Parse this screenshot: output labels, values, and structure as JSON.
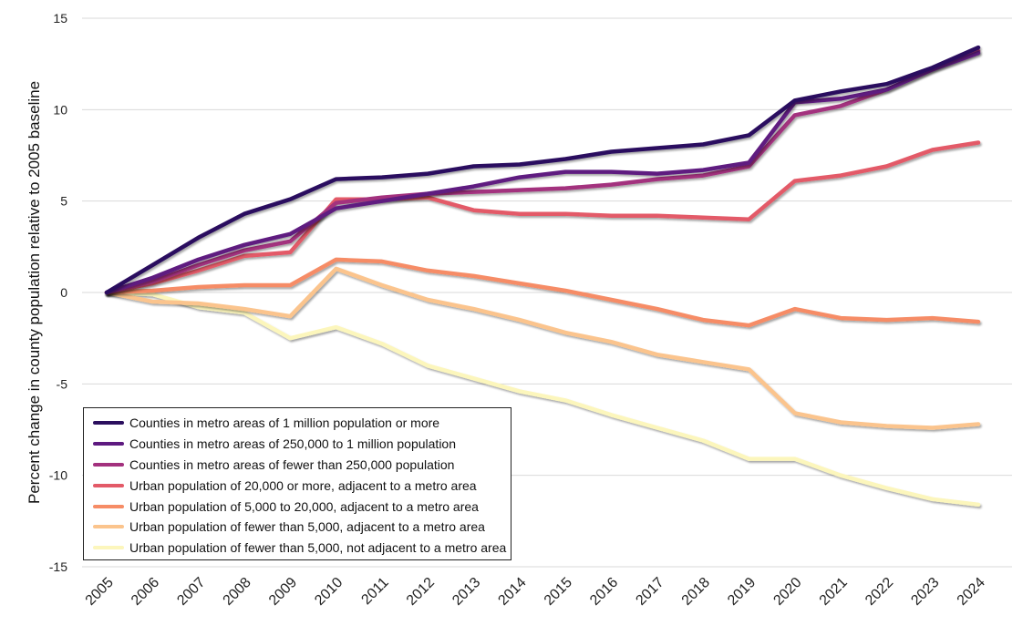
{
  "chart_data": {
    "type": "line",
    "title": "",
    "xlabel": "",
    "ylabel": "Percent change in county population relative to 2005 baseline",
    "ylim": [
      -15,
      15
    ],
    "yticks": [
      -15,
      -10,
      -5,
      0,
      5,
      10,
      15
    ],
    "grid": true,
    "legend_position": "bottom-left",
    "x": [
      "2005",
      "2006",
      "2007",
      "2008",
      "2009",
      "2010",
      "2011",
      "2012",
      "2013",
      "2014",
      "2015",
      "2016",
      "2017",
      "2018",
      "2019",
      "2020",
      "2021",
      "2022",
      "2023",
      "2024"
    ],
    "series": [
      {
        "name": "Counties in metro areas of 1 million population or more",
        "color": "#2b0f5e",
        "values": [
          0,
          1.5,
          3.0,
          4.3,
          5.1,
          6.2,
          6.3,
          6.5,
          6.9,
          7.0,
          7.3,
          7.7,
          7.9,
          8.1,
          8.6,
          10.5,
          11.0,
          11.4,
          12.3,
          13.4
        ]
      },
      {
        "name": "Counties in metro areas of 250,000 to 1 million population",
        "color": "#5e1a80",
        "values": [
          0,
          0.8,
          1.8,
          2.6,
          3.2,
          4.6,
          5.0,
          5.4,
          5.8,
          6.3,
          6.6,
          6.6,
          6.5,
          6.7,
          7.1,
          10.4,
          10.6,
          11.1,
          12.2,
          13.1
        ]
      },
      {
        "name": "Counties in metro areas of fewer than 250,000 population",
        "color": "#a3317e",
        "values": [
          0,
          0.6,
          1.5,
          2.3,
          2.8,
          4.9,
          5.2,
          5.4,
          5.5,
          5.6,
          5.7,
          5.9,
          6.2,
          6.4,
          6.9,
          9.7,
          10.2,
          11.1,
          12.2,
          13.2
        ]
      },
      {
        "name": "Urban population of 20,000 or more, adjacent to a metro area",
        "color": "#e35a68",
        "values": [
          0,
          0.5,
          1.2,
          2.0,
          2.2,
          5.1,
          5.1,
          5.2,
          4.5,
          4.3,
          4.3,
          4.2,
          4.2,
          4.1,
          4.0,
          6.1,
          6.4,
          6.9,
          7.8,
          8.2
        ]
      },
      {
        "name": "Urban population of 5,000 to 20,000, adjacent to a metro area",
        "color": "#f68c66",
        "values": [
          0,
          0.1,
          0.3,
          0.4,
          0.4,
          1.8,
          1.7,
          1.2,
          0.9,
          0.5,
          0.1,
          -0.4,
          -0.9,
          -1.5,
          -1.8,
          -0.9,
          -1.4,
          -1.5,
          -1.4,
          -1.6
        ]
      },
      {
        "name": "Urban population of fewer than 5,000, adjacent to a metro area",
        "color": "#fbc48d",
        "values": [
          0,
          -0.5,
          -0.6,
          -0.9,
          -1.3,
          1.3,
          0.4,
          -0.4,
          -0.9,
          -1.5,
          -2.2,
          -2.7,
          -3.4,
          -3.8,
          -4.2,
          -6.6,
          -7.1,
          -7.3,
          -7.4,
          -7.2
        ]
      },
      {
        "name": "Urban population of fewer than 5,000, not adjacent to a metro area",
        "color": "#fcf6bc",
        "values": [
          0,
          -0.1,
          -0.8,
          -1.1,
          -2.5,
          -1.9,
          -2.8,
          -4.0,
          -4.7,
          -5.4,
          -5.9,
          -6.7,
          -7.4,
          -8.1,
          -9.1,
          -9.1,
          -10.0,
          -10.7,
          -11.3,
          -11.6
        ]
      }
    ]
  }
}
